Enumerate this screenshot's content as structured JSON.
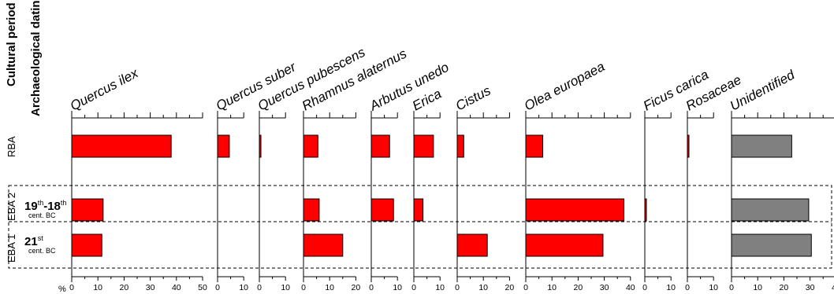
{
  "chart_data": {
    "type": "bar",
    "orientation": "horizontal",
    "header_labels": [
      "Cultural period",
      "Archaeological dating"
    ],
    "axis_unit": "%",
    "taxa": [
      {
        "name": "Quercus ilex",
        "ticks": [
          "0",
          "10",
          "20",
          "30",
          "40",
          "50"
        ],
        "max": 50
      },
      {
        "name": "Quercus suber",
        "ticks": [
          "0",
          "10"
        ],
        "max": 10
      },
      {
        "name": "Quercus pubescens",
        "ticks": [
          "0",
          "10"
        ],
        "max": 10
      },
      {
        "name": "Rhamnus alaternus",
        "ticks": [
          "0",
          "10",
          "20"
        ],
        "max": 20
      },
      {
        "name": "Arbutus unedo",
        "ticks": [
          "0",
          "10"
        ],
        "max": 10
      },
      {
        "name": "Erica",
        "ticks": [
          "0",
          "10"
        ],
        "max": 10
      },
      {
        "name": "Cistus",
        "ticks": [
          "0",
          "10",
          "20"
        ],
        "max": 20
      },
      {
        "name": "Olea europaea",
        "ticks": [
          "0",
          "10",
          "20",
          "30",
          "40"
        ],
        "max": 40
      },
      {
        "name": "Ficus carica",
        "ticks": [
          "0",
          "10"
        ],
        "max": 10
      },
      {
        "name": "Rosaceae",
        "ticks": [
          "0",
          "10"
        ],
        "max": 10
      },
      {
        "name": "Unidentified",
        "ticks": [
          "0",
          "10",
          "20",
          "30",
          "40"
        ],
        "max": 40
      }
    ],
    "rows": [
      {
        "period": "RBA",
        "dating_main": "",
        "dating_sup": "",
        "dating_main2": "",
        "dating_sub": "",
        "values": [
          38,
          4.5,
          0.5,
          5.5,
          7,
          7.5,
          2.5,
          6.5,
          0,
          0.5,
          23
        ]
      },
      {
        "period": "EBA 2",
        "dating_main": "19",
        "dating_sup": "th",
        "dating_main2": "-18",
        "dating_sup2": "th",
        "dating_sub": "cent. BC",
        "values": [
          12,
          0,
          0,
          6,
          8.5,
          3.5,
          0,
          37.5,
          0.5,
          0,
          29.5
        ]
      },
      {
        "period": "EBA 1",
        "dating_main": "21",
        "dating_sup": "st",
        "dating_main2": "",
        "dating_sup2": "",
        "dating_sub": "cent. BC",
        "values": [
          11.5,
          0,
          0,
          15,
          0,
          0,
          11.5,
          29.5,
          0,
          0,
          30.5
        ]
      }
    ],
    "colors": {
      "taxa": "#ff0000",
      "unidentified": "#808080",
      "outline": "#000000"
    }
  }
}
